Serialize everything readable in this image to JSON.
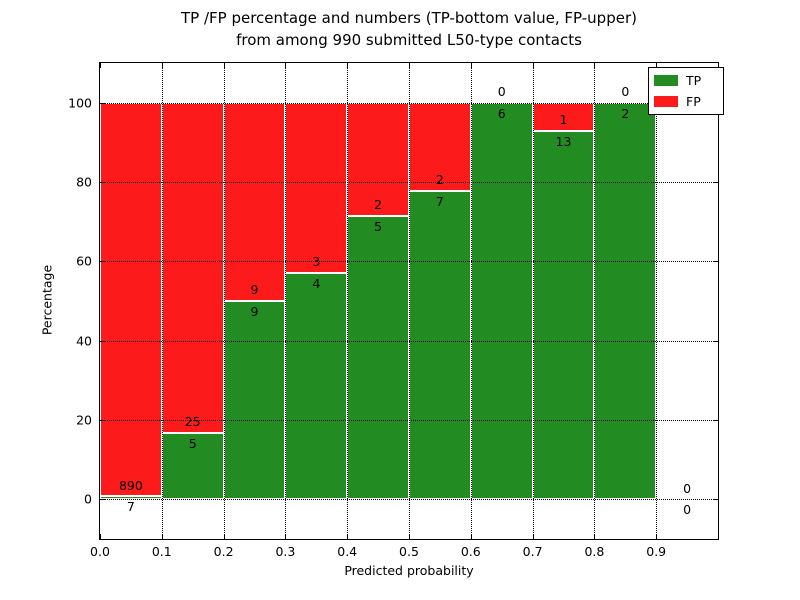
{
  "figure": {
    "title_line1": "TP /FP percentage and numbers (TP-bottom value, FP-upper)",
    "title_line2": "from among 990 submitted L50-type contacts",
    "background": "#ffffff"
  },
  "axes": {
    "xlabel": "Predicted probability",
    "ylabel": "Percentage",
    "x_ticks": [
      {
        "label": "0.0",
        "value": 0.0
      },
      {
        "label": "0.1",
        "value": 0.1
      },
      {
        "label": "0.2",
        "value": 0.2
      },
      {
        "label": "0.3",
        "value": 0.3
      },
      {
        "label": "0.4",
        "value": 0.4
      },
      {
        "label": "0.5",
        "value": 0.5
      },
      {
        "label": "0.6",
        "value": 0.6
      },
      {
        "label": "0.7",
        "value": 0.7
      },
      {
        "label": "0.8",
        "value": 0.8
      },
      {
        "label": "0.9",
        "value": 0.9
      }
    ],
    "y_ticks": [
      {
        "label": "0",
        "value": 0
      },
      {
        "label": "20",
        "value": 20
      },
      {
        "label": "40",
        "value": 40
      },
      {
        "label": "60",
        "value": 60
      },
      {
        "label": "80",
        "value": 80
      },
      {
        "label": "100",
        "value": 100
      }
    ]
  },
  "legend": {
    "items": [
      {
        "label": "TP",
        "color": "#228b22"
      },
      {
        "label": "FP",
        "color": "#fd1a1a"
      }
    ]
  },
  "chart_data": {
    "type": "bar",
    "stacked": true,
    "title": "TP /FP percentage and numbers (TP-bottom value, FP-upper) from among 990 submitted L50-type contacts",
    "xlabel": "Predicted probability",
    "ylabel": "Percentage",
    "xlim": [
      0.0,
      1.0
    ],
    "ylim": [
      -10,
      110
    ],
    "grid": true,
    "legend_position": "upper right",
    "bin_width": 0.1,
    "total_contacts": 990,
    "series": [
      {
        "name": "TP",
        "color": "#228b22",
        "counts": [
          7,
          5,
          9,
          4,
          5,
          7,
          6,
          13,
          2,
          0
        ]
      },
      {
        "name": "FP",
        "color": "#fd1a1a",
        "counts": [
          890,
          25,
          9,
          3,
          2,
          2,
          0,
          1,
          0,
          0
        ]
      }
    ],
    "bins": [
      {
        "x0": 0.0,
        "x1": 0.1,
        "tp": 7,
        "fp": 890,
        "tp_pct": 0.78,
        "fp_pct": 99.22
      },
      {
        "x0": 0.1,
        "x1": 0.2,
        "tp": 5,
        "fp": 25,
        "tp_pct": 16.67,
        "fp_pct": 83.33
      },
      {
        "x0": 0.2,
        "x1": 0.3,
        "tp": 9,
        "fp": 9,
        "tp_pct": 50.0,
        "fp_pct": 50.0
      },
      {
        "x0": 0.3,
        "x1": 0.4,
        "tp": 4,
        "fp": 3,
        "tp_pct": 57.14,
        "fp_pct": 42.86
      },
      {
        "x0": 0.4,
        "x1": 0.5,
        "tp": 5,
        "fp": 2,
        "tp_pct": 71.43,
        "fp_pct": 28.57
      },
      {
        "x0": 0.5,
        "x1": 0.6,
        "tp": 7,
        "fp": 2,
        "tp_pct": 77.78,
        "fp_pct": 22.22
      },
      {
        "x0": 0.6,
        "x1": 0.7,
        "tp": 6,
        "fp": 0,
        "tp_pct": 100.0,
        "fp_pct": 0.0
      },
      {
        "x0": 0.7,
        "x1": 0.8,
        "tp": 13,
        "fp": 1,
        "tp_pct": 92.86,
        "fp_pct": 7.14
      },
      {
        "x0": 0.8,
        "x1": 0.9,
        "tp": 2,
        "fp": 0,
        "tp_pct": 100.0,
        "fp_pct": 0.0
      },
      {
        "x0": 0.9,
        "x1": 1.0,
        "tp": 0,
        "fp": 0,
        "tp_pct": 0.0,
        "fp_pct": 0.0
      }
    ]
  }
}
